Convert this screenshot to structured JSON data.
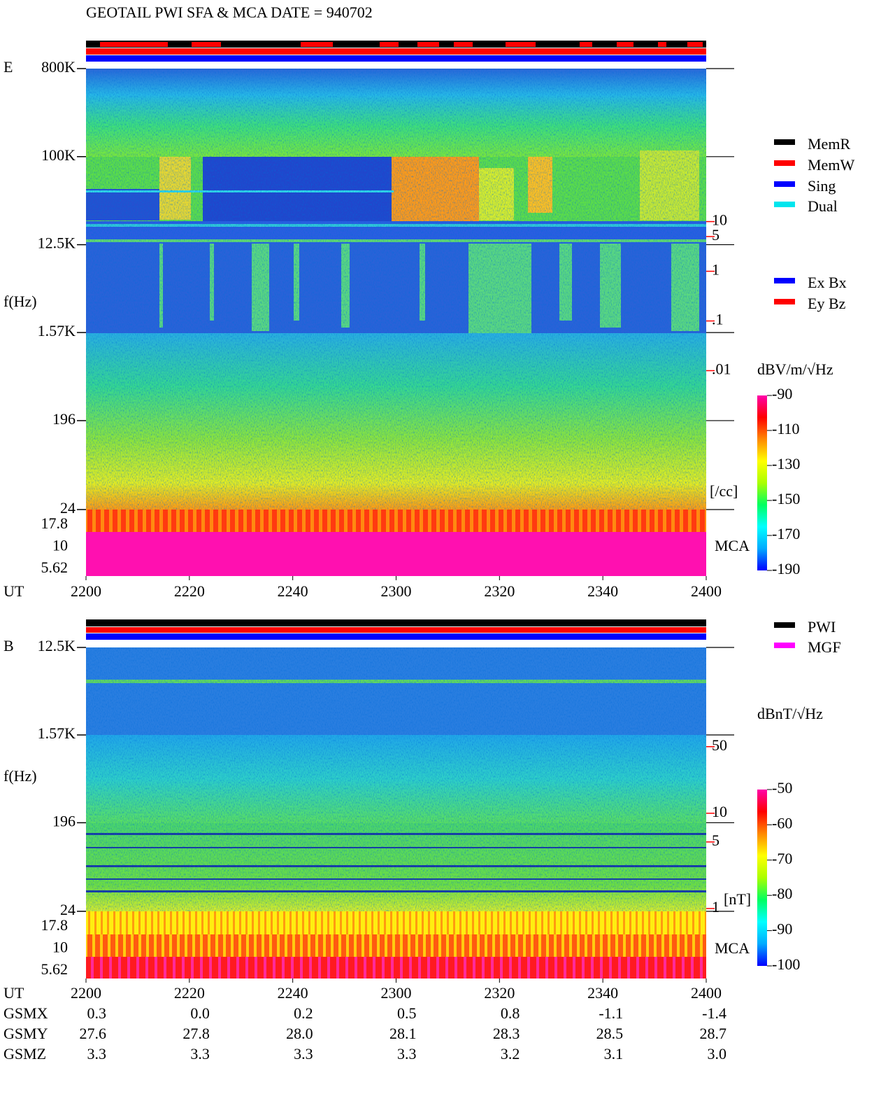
{
  "title": "GEOTAIL  PWI SFA & MCA   DATE = 940702",
  "x_label": "UT",
  "x_ticks": [
    "2200",
    "2220",
    "2240",
    "2300",
    "2320",
    "2340",
    "2400"
  ],
  "panels": [
    {
      "label": "E",
      "y_label": "f(Hz)",
      "log_scale": true,
      "ylim": [
        24,
        800000
      ],
      "yticks": [
        {
          "value": 800000,
          "label": "800K"
        },
        {
          "value": 100000,
          "label": "100K"
        },
        {
          "value": 12500,
          "label": "12.5K"
        },
        {
          "value": 1570,
          "label": "1.57K"
        },
        196,
        24
      ],
      "mca_label": "MCA",
      "mca_ticks": [
        "17.8",
        "10",
        "5.62"
      ],
      "y2_log_scale": true,
      "y2lim": [
        1.6e-05,
        12000
      ],
      "y2ticks": [
        10,
        5,
        1,
        {
          "value": 0.1,
          "label": ".1"
        },
        {
          "value": 0.01,
          "label": ".01"
        }
      ],
      "y2_label": "[/cc]",
      "y2_color": "#ff0000",
      "colorbar": {
        "label": "dBV/m/√Hz",
        "lim": [
          -190,
          -90
        ],
        "ticks": [
          -90,
          -110,
          -130,
          -150,
          -170,
          -190
        ]
      },
      "legends": [
        [
          {
            "name": "MemR",
            "color": "#000000"
          },
          {
            "name": "MemW",
            "color": "#ff0000"
          },
          {
            "name": "Sing",
            "color": "#0000ff"
          },
          {
            "name": "Dual",
            "color": "#00e5ee"
          }
        ],
        [
          {
            "name": "Ex Bx",
            "color": "#0000ff"
          },
          {
            "name": "Ey Bz",
            "color": "#ff0000"
          }
        ]
      ]
    },
    {
      "label": "B",
      "y_label": "f(Hz)",
      "log_scale": true,
      "ylim": [
        24,
        12500
      ],
      "yticks": [
        {
          "value": 12500,
          "label": "12.5K"
        },
        {
          "value": 1570,
          "label": "1.57K"
        },
        196,
        24
      ],
      "mca_label": "MCA",
      "mca_ticks": [
        "17.8",
        "10",
        "5.62"
      ],
      "y2_log_scale": true,
      "y2lim": [
        0.935,
        550
      ],
      "y2ticks": [
        50,
        10,
        5,
        1
      ],
      "y2_label": "[nT]",
      "y2_color": "#ff0000",
      "colorbar": {
        "label": "dBnT/√Hz",
        "lim": [
          -100,
          -50
        ],
        "ticks": [
          -50,
          -60,
          -70,
          -80,
          -90,
          -100
        ]
      },
      "legends": [
        [
          {
            "name": "PWI",
            "color": "#000000"
          },
          {
            "name": "MGF",
            "color": "#ff00ff"
          }
        ]
      ]
    }
  ],
  "colorscale": [
    "#0000ff",
    "#00aaff",
    "#00ffff",
    "#00ff60",
    "#aaff00",
    "#ffff00",
    "#ff8800",
    "#ff0000",
    "#ff00aa"
  ],
  "ephemeris": {
    "rows": [
      {
        "name": "GSMX",
        "values": [
          "0.3",
          "0.0",
          "0.2",
          "0.5",
          "0.8",
          "-1.1",
          "-1.4"
        ]
      },
      {
        "name": "GSMY",
        "values": [
          "27.6",
          "27.8",
          "28.0",
          "28.1",
          "28.3",
          "28.5",
          "28.7"
        ]
      },
      {
        "name": "GSMZ",
        "values": [
          "3.3",
          "3.3",
          "3.3",
          "3.3",
          "3.2",
          "3.1",
          "3.0"
        ]
      }
    ]
  }
}
